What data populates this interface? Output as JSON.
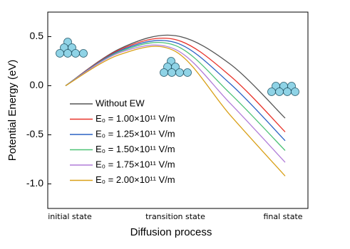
{
  "chart_data": {
    "type": "line",
    "x_label": "Diffusion process",
    "y_label": "Potential Energy (eV)",
    "categories": [
      "initial state",
      null,
      "transition state",
      null,
      "final state"
    ],
    "ylim": [
      -1.25,
      0.75
    ],
    "yticks": [
      {
        "value": -1.0,
        "label": "-1.0"
      },
      -0.5,
      {
        "value": 0,
        "label": "0.0"
      },
      0.5
    ],
    "legend": "lower-left",
    "series": [
      {
        "name": "Without EW",
        "color": "#555555",
        "values": [
          0,
          0.38,
          0.51,
          0.22,
          -0.33
        ]
      },
      {
        "name": "E₀ = 1.00×10¹¹ V/m",
        "color": "#e8332a",
        "values": [
          0,
          0.37,
          0.47,
          0.1,
          -0.47
        ]
      },
      {
        "name": "E₀ = 1.25×10¹¹ V/m",
        "color": "#2a62c4",
        "values": [
          0,
          0.36,
          0.44,
          0.02,
          -0.56
        ]
      },
      {
        "name": "E₀ = 1.50×10¹¹ V/m",
        "color": "#4cc276",
        "values": [
          0,
          0.35,
          0.41,
          -0.08,
          -0.66
        ]
      },
      {
        "name": "E₀ = 1.75×10¹¹ V/m",
        "color": "#b07cd8",
        "values": [
          0,
          0.34,
          0.37,
          -0.18,
          -0.78
        ]
      },
      {
        "name": "E₀ = 2.00×10¹¹ V/m",
        "color": "#d9a018",
        "values": [
          0,
          0.32,
          0.35,
          -0.3,
          -0.92
        ]
      }
    ]
  }
}
